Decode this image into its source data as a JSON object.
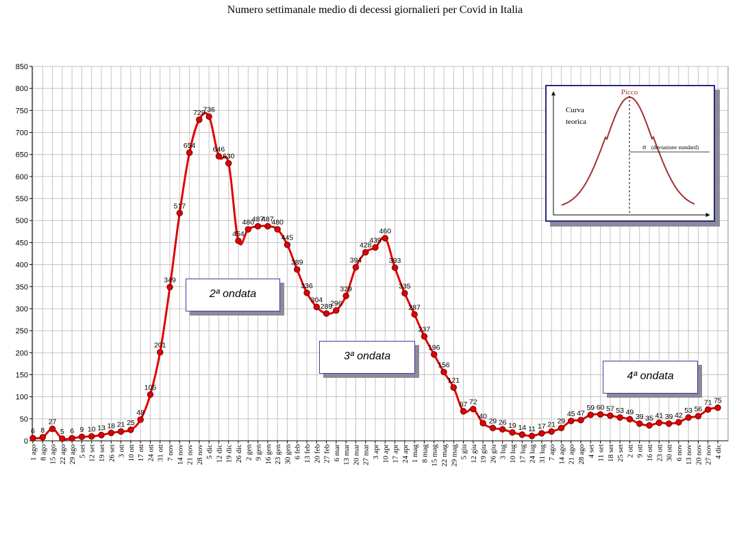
{
  "title": "Numero settimanale medio di decessi giornalieri per Covid in Italia",
  "chart_data": {
    "type": "line",
    "ylim": [
      0,
      850
    ],
    "yticks": [
      0,
      50,
      100,
      150,
      200,
      250,
      300,
      350,
      400,
      450,
      500,
      550,
      600,
      650,
      700,
      750,
      800,
      850
    ],
    "categories": [
      "1 ago",
      "8 ago",
      "15 ago",
      "22 ago",
      "29 ago",
      "5 set",
      "12 set",
      "19 set",
      "26 set",
      "3 ott",
      "10 ott",
      "17 ott",
      "24 ott",
      "31 ott",
      "7 nov",
      "14 nov",
      "21 nov",
      "28 nov",
      "5 dic",
      "12 dic",
      "19 dic",
      "26 dic",
      "2 gen",
      "9 gen",
      "16 gen",
      "23 gen",
      "30 gen",
      "6 feb",
      "13 feb",
      "20 feb",
      "27 feb",
      "6 mar",
      "13 mar",
      "20 mar",
      "27 mar",
      "3 apr",
      "10 apr",
      "17 apr",
      "24 apr",
      "1 mag",
      "8 mag",
      "15 mag",
      "22 mag",
      "29 mag",
      "5 giu",
      "12 giu",
      "19 giu",
      "26 giu",
      "3 lug",
      "10 lug",
      "17 lug",
      "24 lug",
      "31 lug",
      "7 ago",
      "14 ago",
      "21 ago",
      "28 ago",
      "4 set",
      "11 set",
      "18 set",
      "25 set",
      "2 ott",
      "9 ott",
      "16 ott",
      "23 ott",
      "30 ott",
      "6 nov",
      "13 nov",
      "20 nov",
      "27 nov",
      "4 dic"
    ],
    "values": [
      6,
      8,
      27,
      5,
      6,
      9,
      10,
      13,
      18,
      21,
      25,
      48,
      105,
      201,
      349,
      517,
      654,
      729,
      736,
      646,
      630,
      454,
      480,
      487,
      487,
      480,
      445,
      389,
      336,
      304,
      289,
      296,
      329,
      394,
      428,
      439,
      460,
      393,
      335,
      287,
      237,
      196,
      156,
      121,
      67,
      72,
      40,
      29,
      26,
      19,
      14,
      11,
      17,
      21,
      29,
      45,
      47,
      59,
      60,
      57,
      53,
      49,
      39,
      35,
      41,
      39,
      42,
      53,
      56,
      71,
      75
    ],
    "series_color": "#e00000",
    "annotations": [
      {
        "label": "2ª ondata"
      },
      {
        "label": "3ª ondata"
      },
      {
        "label": "4ª ondata"
      }
    ],
    "inset": {
      "peak_label": "Picco",
      "curve_label_line1": "Curva",
      "curve_label_line2": "teorica",
      "sigma_label": "σ",
      "sigma_desc": "(deviazione standard)"
    }
  }
}
